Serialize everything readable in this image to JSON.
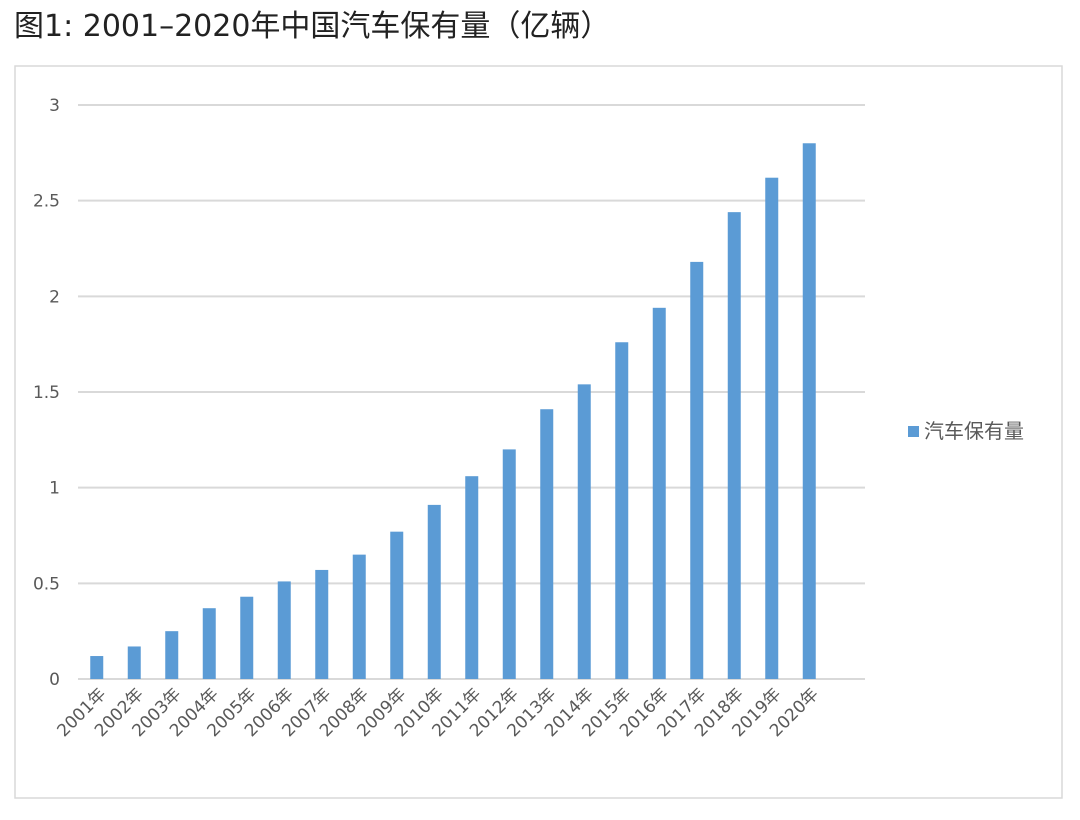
{
  "chart_data": {
    "type": "bar",
    "title": "图1: 2001–2020年中国汽车保有量（亿辆）",
    "categories": [
      "2001年",
      "2002年",
      "2003年",
      "2004年",
      "2005年",
      "2006年",
      "2007年",
      "2008年",
      "2009年",
      "2010年",
      "2011年",
      "2012年",
      "2013年",
      "2014年",
      "2015年",
      "2016年",
      "2017年",
      "2018年",
      "2019年",
      "2020年"
    ],
    "series": [
      {
        "name": "汽车保有量",
        "color": "#5b9bd5",
        "values": [
          0.12,
          0.17,
          0.25,
          0.37,
          0.43,
          0.51,
          0.57,
          0.65,
          0.77,
          0.91,
          1.06,
          1.2,
          1.41,
          1.54,
          1.76,
          1.94,
          2.18,
          2.44,
          2.62,
          2.8
        ]
      }
    ],
    "ylim": [
      0,
      3
    ],
    "yticks": [
      0,
      0.5,
      1,
      1.5,
      2,
      2.5,
      3
    ],
    "grid": true,
    "legend": "right"
  }
}
